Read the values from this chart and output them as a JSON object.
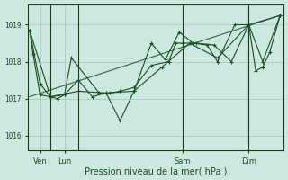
{
  "xlabel": "Pression niveau de la mer( hPa )",
  "bg_color": "#cce8e0",
  "grid_color": "#aaccbb",
  "line_color": "#1a5020",
  "tick_color": "#1a5020",
  "axis_color": "#1a4010",
  "ylim": [
    1015.6,
    1019.55
  ],
  "xlim": [
    -0.5,
    73
  ],
  "series1_x": [
    0,
    1,
    3,
    6,
    8,
    10,
    12,
    20,
    23,
    26,
    30,
    35,
    40,
    42,
    44,
    48,
    53,
    58,
    63,
    65,
    67,
    69,
    72
  ],
  "series1_y": [
    1018.85,
    1018.2,
    1017.1,
    1017.05,
    1017.0,
    1017.1,
    1018.1,
    1017.15,
    1017.15,
    1017.2,
    1017.3,
    1017.9,
    1018.0,
    1018.5,
    1018.5,
    1018.5,
    1018.45,
    1018.0,
    1019.0,
    1017.75,
    1017.85,
    1018.25,
    1019.25
  ],
  "series2_x": [
    0,
    3,
    6,
    10,
    14,
    18,
    22,
    26,
    30,
    35,
    39,
    43,
    47,
    51,
    54,
    59,
    63,
    67,
    72
  ],
  "series2_y": [
    1018.85,
    1017.4,
    1017.05,
    1017.1,
    1017.5,
    1017.05,
    1017.15,
    1016.4,
    1017.2,
    1018.5,
    1018.05,
    1018.8,
    1018.5,
    1018.45,
    1018.0,
    1019.0,
    1019.0,
    1018.0,
    1019.25
  ],
  "series3_x": [
    0,
    6,
    14,
    22,
    30,
    38,
    46,
    54,
    63,
    72
  ],
  "series3_y": [
    1018.85,
    1017.05,
    1017.2,
    1017.15,
    1017.2,
    1017.85,
    1018.5,
    1018.1,
    1019.0,
    1019.25
  ],
  "series4_x": [
    0,
    72
  ],
  "series4_y": [
    1017.05,
    1019.25
  ],
  "yticks": [
    1016,
    1017,
    1018,
    1019
  ],
  "vline_positions": [
    6,
    14,
    44,
    63
  ],
  "xtick_positions": [
    3,
    10,
    44,
    63
  ],
  "xtick_labels": [
    "Ven",
    "Lun",
    "Sam",
    "Dim"
  ]
}
